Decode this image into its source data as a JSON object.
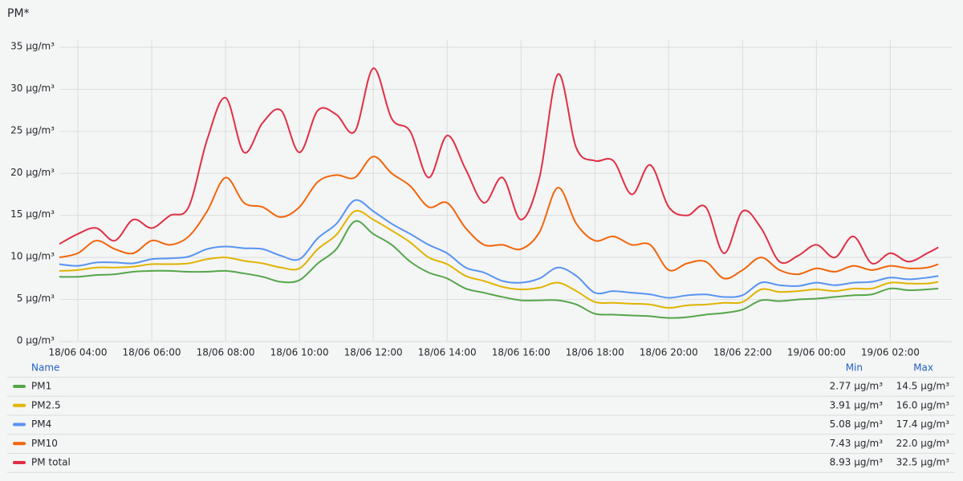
{
  "chart_data": {
    "type": "line",
    "title": "PM*",
    "x": [
      3.5,
      4,
      4.5,
      5,
      5.5,
      6,
      6.5,
      7,
      7.5,
      8,
      8.5,
      9,
      9.5,
      10,
      10.5,
      11,
      11.5,
      12,
      12.5,
      13,
      13.5,
      14,
      14.5,
      15,
      15.5,
      16,
      16.5,
      17,
      17.5,
      18,
      18.5,
      19,
      19.5,
      20,
      20.5,
      21,
      21.5,
      22,
      22.5,
      23,
      23.5,
      24,
      24.5,
      25,
      25.5,
      26,
      26.5,
      27,
      27.3
    ],
    "xlim": [
      3.5,
      27.36
    ],
    "xticks": [
      {
        "value": 4,
        "label": "18/06 04:00"
      },
      {
        "value": 6,
        "label": "18/06 06:00"
      },
      {
        "value": 8,
        "label": "18/06 08:00"
      },
      {
        "value": 10,
        "label": "18/06 10:00"
      },
      {
        "value": 12,
        "label": "18/06 12:00"
      },
      {
        "value": 14,
        "label": "18/06 14:00"
      },
      {
        "value": 16,
        "label": "18/06 16:00"
      },
      {
        "value": 18,
        "label": "18/06 18:00"
      },
      {
        "value": 20,
        "label": "18/06 20:00"
      },
      {
        "value": 22,
        "label": "18/06 22:00"
      },
      {
        "value": 24,
        "label": "19/06 00:00"
      },
      {
        "value": 26,
        "label": "19/06 02:00"
      }
    ],
    "ylim": [
      0,
      35
    ],
    "yticks": [
      {
        "value": 0,
        "label": "0 µg/m³"
      },
      {
        "value": 5,
        "label": "5 µg/m³"
      },
      {
        "value": 10,
        "label": "10 µg/m³"
      },
      {
        "value": 15,
        "label": "15 µg/m³"
      },
      {
        "value": 20,
        "label": "20 µg/m³"
      },
      {
        "value": 25,
        "label": "25 µg/m³"
      },
      {
        "value": 30,
        "label": "30 µg/m³"
      },
      {
        "value": 35,
        "label": "35 µg/m³"
      }
    ],
    "grid": true,
    "legend_headers": [
      "Name",
      "Min",
      "Max"
    ],
    "series": [
      {
        "name": "PM1",
        "color": "#56a64b",
        "legend_min": {
          "value": 2.77,
          "label": "2.77 µg/m³"
        },
        "legend_max": {
          "value": 14.5,
          "label": "14.5 µg/m³"
        },
        "values": [
          7.7,
          7.7,
          7.9,
          8.0,
          8.3,
          8.4,
          8.4,
          8.3,
          8.3,
          8.4,
          8.1,
          7.7,
          7.1,
          7.3,
          9.3,
          11.0,
          14.3,
          12.8,
          11.5,
          9.5,
          8.2,
          7.5,
          6.3,
          5.8,
          5.3,
          4.9,
          4.9,
          4.9,
          4.4,
          3.3,
          3.2,
          3.1,
          3.0,
          2.8,
          2.9,
          3.2,
          3.4,
          3.8,
          4.9,
          4.8,
          5.0,
          5.1,
          5.3,
          5.5,
          5.6,
          6.3,
          6.1,
          6.2,
          6.3
        ]
      },
      {
        "name": "PM2.5",
        "color": "#e0b400",
        "legend_min": {
          "value": 3.91,
          "label": "3.91 µg/m³"
        },
        "legend_max": {
          "value": 16.0,
          "label": "16.0 µg/m³"
        },
        "values": [
          8.4,
          8.5,
          8.8,
          8.8,
          8.9,
          9.2,
          9.2,
          9.3,
          9.8,
          10.0,
          9.6,
          9.3,
          8.8,
          8.7,
          11.0,
          12.7,
          15.5,
          14.5,
          13.2,
          11.8,
          10.0,
          9.2,
          7.8,
          7.2,
          6.5,
          6.2,
          6.4,
          7.0,
          6.0,
          4.7,
          4.6,
          4.5,
          4.4,
          4.0,
          4.3,
          4.4,
          4.6,
          4.7,
          6.2,
          5.9,
          6.0,
          6.2,
          6.0,
          6.3,
          6.3,
          7.0,
          6.9,
          6.9,
          7.1
        ]
      },
      {
        "name": "PM4",
        "color": "#5794f2",
        "legend_min": {
          "value": 5.08,
          "label": "5.08 µg/m³"
        },
        "legend_max": {
          "value": 17.4,
          "label": "17.4 µg/m³"
        },
        "values": [
          9.2,
          9.0,
          9.4,
          9.4,
          9.3,
          9.8,
          9.9,
          10.1,
          11.0,
          11.3,
          11.1,
          11.0,
          10.2,
          9.8,
          12.3,
          14.0,
          16.8,
          15.5,
          14.0,
          12.8,
          11.5,
          10.5,
          8.8,
          8.2,
          7.2,
          7.0,
          7.5,
          8.8,
          7.8,
          5.8,
          6.0,
          5.8,
          5.6,
          5.2,
          5.5,
          5.6,
          5.3,
          5.5,
          7.0,
          6.7,
          6.6,
          7.0,
          6.7,
          7.0,
          7.1,
          7.6,
          7.4,
          7.6,
          7.8
        ]
      },
      {
        "name": "PM10",
        "color": "#f2650a",
        "legend_min": {
          "value": 7.43,
          "label": "7.43 µg/m³"
        },
        "legend_max": {
          "value": 22.0,
          "label": "22.0 µg/m³"
        },
        "values": [
          10.0,
          10.5,
          12.0,
          11.0,
          10.5,
          12.0,
          11.5,
          12.5,
          15.5,
          19.5,
          16.5,
          16.0,
          14.8,
          16.0,
          19.0,
          19.8,
          19.5,
          22.0,
          20.0,
          18.5,
          16.0,
          16.5,
          13.5,
          11.5,
          11.5,
          11.0,
          13.0,
          18.3,
          14.0,
          12.0,
          12.5,
          11.5,
          11.5,
          8.5,
          9.3,
          9.5,
          7.5,
          8.5,
          10.0,
          8.5,
          8.0,
          8.7,
          8.3,
          9.0,
          8.5,
          9.0,
          8.7,
          8.8,
          9.2
        ]
      },
      {
        "name": "PM total",
        "color": "#e02f44",
        "legend_min": {
          "value": 8.93,
          "label": "8.93 µg/m³"
        },
        "legend_max": {
          "value": 32.5,
          "label": "32.5 µg/m³"
        },
        "values": [
          11.6,
          12.8,
          13.5,
          12.0,
          14.5,
          13.5,
          15.0,
          16.0,
          24.0,
          29.0,
          22.5,
          26.0,
          27.5,
          22.5,
          27.5,
          27.0,
          25.0,
          32.5,
          26.5,
          25.0,
          19.5,
          24.5,
          20.5,
          16.5,
          19.5,
          14.5,
          19.5,
          31.8,
          23.0,
          21.5,
          21.5,
          17.5,
          21.0,
          16.0,
          15.0,
          16.0,
          10.5,
          15.5,
          13.5,
          9.5,
          10.2,
          11.5,
          10.0,
          12.5,
          9.3,
          10.5,
          9.5,
          10.5,
          11.2
        ]
      }
    ]
  }
}
